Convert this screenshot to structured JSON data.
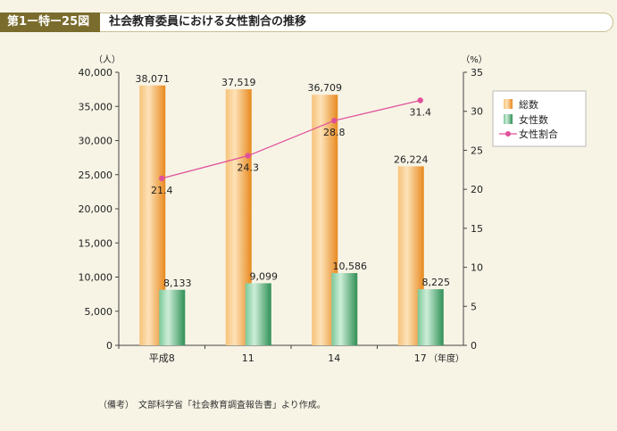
{
  "header": {
    "figure_label": "第1ー特ー25図",
    "title": "社会教育委員における女性割合の推移"
  },
  "note": "（備考）　文部科学省「社会教育調査報告書」より作成。",
  "colors": {
    "total_bar": "#f0a040",
    "female_bar": "#4aaa6e",
    "ratio_line": "#e0509a",
    "label_bar": "#7a6c2c"
  },
  "chart_data": {
    "type": "bar",
    "categories": [
      "平成8",
      "11",
      "14",
      "17"
    ],
    "x_unit_label": "（年度）",
    "left_axis": {
      "unit": "（人）",
      "ylim": [
        0,
        40000
      ],
      "ticks": [
        "0",
        "5,000",
        "10,000",
        "15,000",
        "20,000",
        "25,000",
        "30,000",
        "35,000",
        "40,000"
      ]
    },
    "right_axis": {
      "unit": "（%）",
      "ylim": [
        0,
        35
      ],
      "ticks": [
        "0",
        "5",
        "10",
        "15",
        "20",
        "25",
        "30",
        "35"
      ]
    },
    "series": [
      {
        "name": "総数",
        "type": "bar",
        "axis": "left",
        "values": [
          38071,
          37519,
          36709,
          26224
        ],
        "labels": [
          "38,071",
          "37,519",
          "36,709",
          "26,224"
        ]
      },
      {
        "name": "女性数",
        "type": "bar",
        "axis": "left",
        "values": [
          8133,
          9099,
          10586,
          8225
        ],
        "labels": [
          "8,133",
          "9,099",
          "10,586",
          "8,225"
        ]
      },
      {
        "name": "女性割合",
        "type": "line",
        "axis": "right",
        "values": [
          21.4,
          24.3,
          28.8,
          31.4
        ],
        "labels": [
          "21.4",
          "24.3",
          "28.8",
          "31.4"
        ]
      }
    ],
    "legend_position": "right",
    "grid": false
  }
}
